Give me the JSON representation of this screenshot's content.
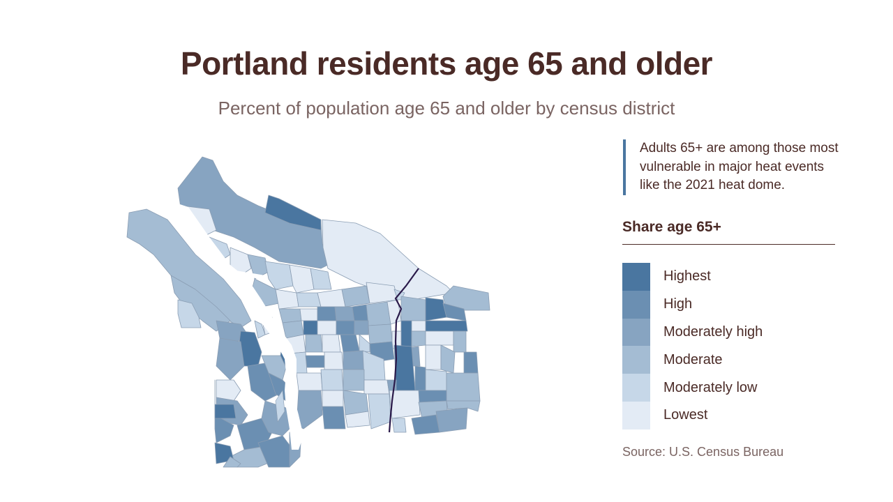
{
  "title": "Portland residents age 65 and older",
  "subtitle": "Percent of population age 65 and older by census district",
  "note": "Adults 65+ are among those most vulnerable in major heat events like the 2021 heat dome.",
  "legend": {
    "title": "Share age 65+",
    "items": [
      {
        "label": "Highest",
        "color": "#4a76a0"
      },
      {
        "label": "High",
        "color": "#6b8fb2"
      },
      {
        "label": "Moderately high",
        "color": "#87a4c1"
      },
      {
        "label": "Moderate",
        "color": "#a4bcd3"
      },
      {
        "label": "Moderately low",
        "color": "#c6d7e8"
      },
      {
        "label": "Lowest",
        "color": "#e3ebf5"
      }
    ]
  },
  "source": "Source: U.S. Census Bureau",
  "map_colors": {
    "river": "#ffffff",
    "district_border": "#8a9db3",
    "divider_line": "#2a1a4a"
  }
}
